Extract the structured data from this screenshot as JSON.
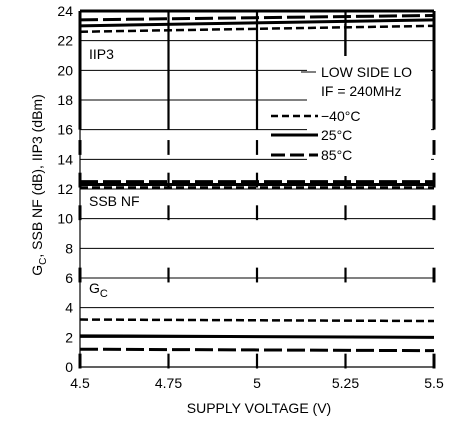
{
  "chart_data": {
    "type": "line",
    "title": "",
    "xlabel": "SUPPLY VOLTAGE (V)",
    "ylabel": "G",
    "ylabel_sub": "C",
    "ylabel_rest": ", SSB NF (dB), IIP3 (dBm)",
    "xlim": [
      4.5,
      5.5
    ],
    "ylim": [
      0,
      24
    ],
    "x_ticks": [
      4.5,
      4.75,
      5,
      5.25,
      5.5
    ],
    "x_tick_labels": [
      "4.5",
      "4.75",
      "5",
      "5.25",
      "5.5"
    ],
    "y_ticks": [
      0,
      2,
      4,
      6,
      8,
      10,
      12,
      14,
      16,
      18,
      20,
      22,
      24
    ],
    "y_tick_labels": [
      "0",
      "2",
      "4",
      "6",
      "8",
      "10",
      "12",
      "14",
      "16",
      "18",
      "20",
      "22",
      "24"
    ],
    "grid": true,
    "legend_position": "right",
    "annotations": {
      "iip3": "IIP3",
      "ssb_nf": "SSB NF",
      "gc_main": "G",
      "gc_sub": "C",
      "conditions_1": "LOW SIDE LO",
      "conditions_2": "IF = 240MHz"
    },
    "legend": [
      {
        "label": "−40°C",
        "style": "dashed"
      },
      {
        "label": "25°C",
        "style": "solid"
      },
      {
        "label": "85°C",
        "style": "longdash"
      }
    ],
    "series": [
      {
        "group": "IIP3",
        "temp": "-40",
        "style": "dashed",
        "x": [
          4.5,
          5.5
        ],
        "y": [
          22.6,
          23.0
        ]
      },
      {
        "group": "IIP3",
        "temp": "25",
        "style": "solid",
        "x": [
          4.5,
          5.5
        ],
        "y": [
          23.0,
          23.4
        ]
      },
      {
        "group": "IIP3",
        "temp": "85",
        "style": "longdash",
        "x": [
          4.5,
          5.5
        ],
        "y": [
          23.4,
          23.7
        ]
      },
      {
        "group": "SSB NF",
        "temp": "-40",
        "style": "dashed",
        "x": [
          4.5,
          5.5
        ],
        "y": [
          12.1,
          12.1
        ]
      },
      {
        "group": "SSB NF",
        "temp": "25",
        "style": "solid",
        "x": [
          4.5,
          5.5
        ],
        "y": [
          12.3,
          12.3
        ]
      },
      {
        "group": "SSB NF",
        "temp": "85",
        "style": "longdash",
        "x": [
          4.5,
          5.5
        ],
        "y": [
          12.5,
          12.5
        ]
      },
      {
        "group": "GC",
        "temp": "-40",
        "style": "dashed",
        "x": [
          4.5,
          5.5
        ],
        "y": [
          3.2,
          3.1
        ]
      },
      {
        "group": "GC",
        "temp": "25",
        "style": "solid",
        "x": [
          4.5,
          5.5
        ],
        "y": [
          2.1,
          2.0
        ]
      },
      {
        "group": "GC",
        "temp": "85",
        "style": "longdash",
        "x": [
          4.5,
          5.5
        ],
        "y": [
          1.2,
          1.1
        ]
      }
    ]
  }
}
